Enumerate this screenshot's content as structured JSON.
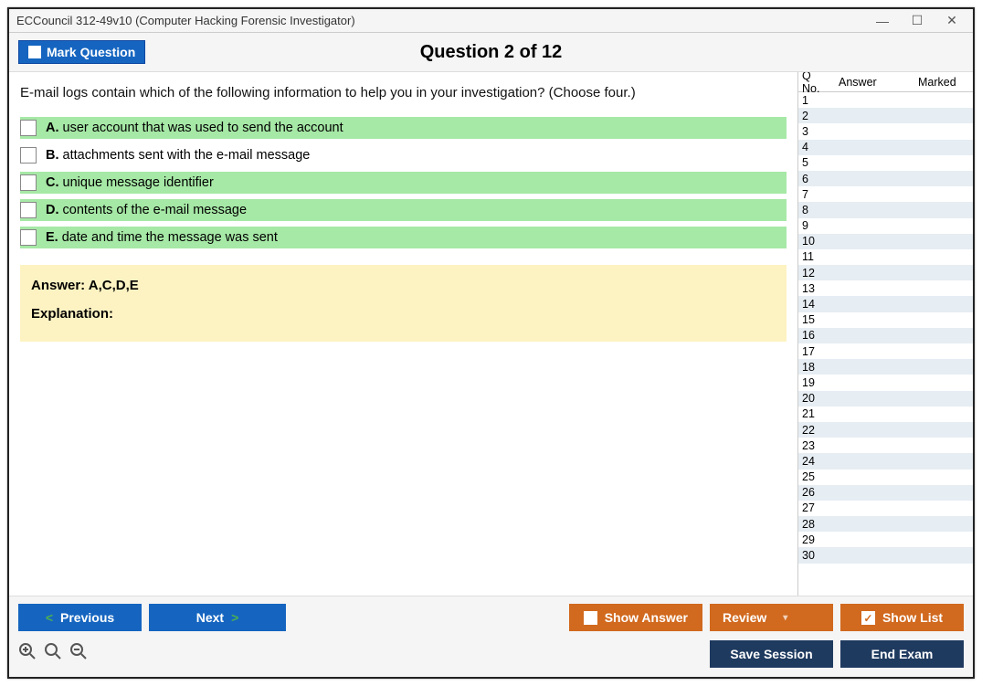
{
  "window": {
    "title": "ECCouncil 312-49v10 (Computer Hacking Forensic Investigator)"
  },
  "header": {
    "mark_label": "Mark Question",
    "question_counter": "Question 2 of 12"
  },
  "question": {
    "prompt": "E-mail logs contain which of the following information to help you in your investigation? (Choose four.)",
    "options": [
      {
        "letter": "A.",
        "text": "user account that was used to send the account",
        "correct": true
      },
      {
        "letter": "B.",
        "text": "attachments sent with the e-mail message",
        "correct": false
      },
      {
        "letter": "C.",
        "text": "unique message identifier",
        "correct": true
      },
      {
        "letter": "D.",
        "text": "contents of the e-mail message",
        "correct": true
      },
      {
        "letter": "E.",
        "text": "date and time the message was sent",
        "correct": true
      }
    ]
  },
  "answer_box": {
    "answer_line": "Answer: A,C,D,E",
    "explanation_label": "Explanation:"
  },
  "side": {
    "col_qno": "Q No.",
    "col_answer": "Answer",
    "col_marked": "Marked",
    "row_count": 30
  },
  "footer": {
    "previous": "Previous",
    "next": "Next",
    "show_answer": "Show Answer",
    "review": "Review",
    "show_list": "Show List",
    "save_session": "Save Session",
    "end_exam": "End Exam"
  },
  "colors": {
    "blue": "#1565c0",
    "orange": "#d1691e",
    "navy": "#1f3a5f",
    "correct_bg": "#a6e8a6",
    "answer_bg": "#fdf3c2"
  }
}
